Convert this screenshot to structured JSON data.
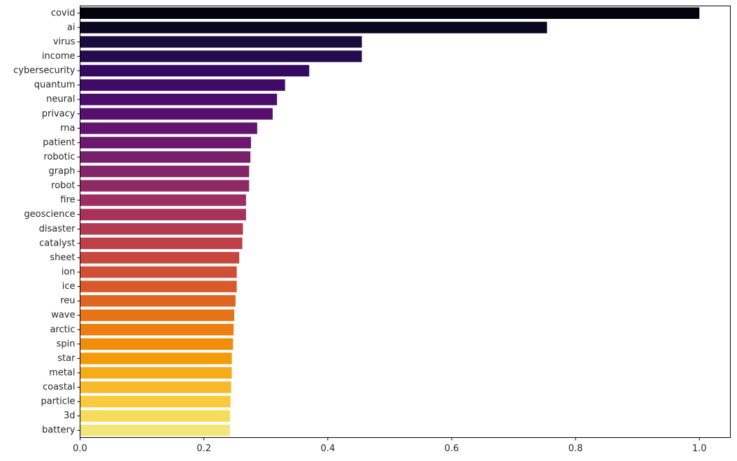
{
  "chart_data": {
    "type": "bar",
    "orientation": "horizontal",
    "title": "",
    "xlabel": "",
    "ylabel": "",
    "xlim": [
      0,
      1.05
    ],
    "xticks": [
      0.0,
      0.2,
      0.4,
      0.6,
      0.8,
      1.0
    ],
    "xtick_labels": [
      "0.0",
      "0.2",
      "0.4",
      "0.6",
      "0.8",
      "1.0"
    ],
    "grid": false,
    "colormap": "inferno",
    "categories": [
      "covid",
      "ai",
      "virus",
      "income",
      "cybersecurity",
      "quantum",
      "neural",
      "privacy",
      "rna",
      "patient",
      "robotic",
      "graph",
      "robot",
      "fire",
      "geoscience",
      "disaster",
      "catalyst",
      "sheet",
      "ion",
      "ice",
      "reu",
      "wave",
      "arctic",
      "spin",
      "star",
      "metal",
      "coastal",
      "particle",
      "3d",
      "battery"
    ],
    "values": [
      1.0,
      0.754,
      0.455,
      0.455,
      0.37,
      0.331,
      0.318,
      0.311,
      0.286,
      0.276,
      0.275,
      0.273,
      0.273,
      0.268,
      0.268,
      0.263,
      0.262,
      0.257,
      0.253,
      0.253,
      0.251,
      0.249,
      0.248,
      0.247,
      0.245,
      0.245,
      0.244,
      0.243,
      0.242,
      0.242
    ],
    "colors": [
      "#03020d",
      "#0a0722",
      "#180c3c",
      "#240c4f",
      "#330a5f",
      "#3f0a68",
      "#4b0c6b",
      "#560f6d",
      "#62146e",
      "#6c186e",
      "#78206c",
      "#842469",
      "#8f2966",
      "#9c2e61",
      "#a6325a",
      "#b23a52",
      "#bd4049",
      "#c6473e",
      "#d04f34",
      "#d85a2a",
      "#df6621",
      "#e67415",
      "#ec7f0f",
      "#f08d0b",
      "#f49b09",
      "#f6ab19",
      "#f8ba2b",
      "#f9c93e",
      "#f7db5a",
      "#f2e57b"
    ]
  }
}
